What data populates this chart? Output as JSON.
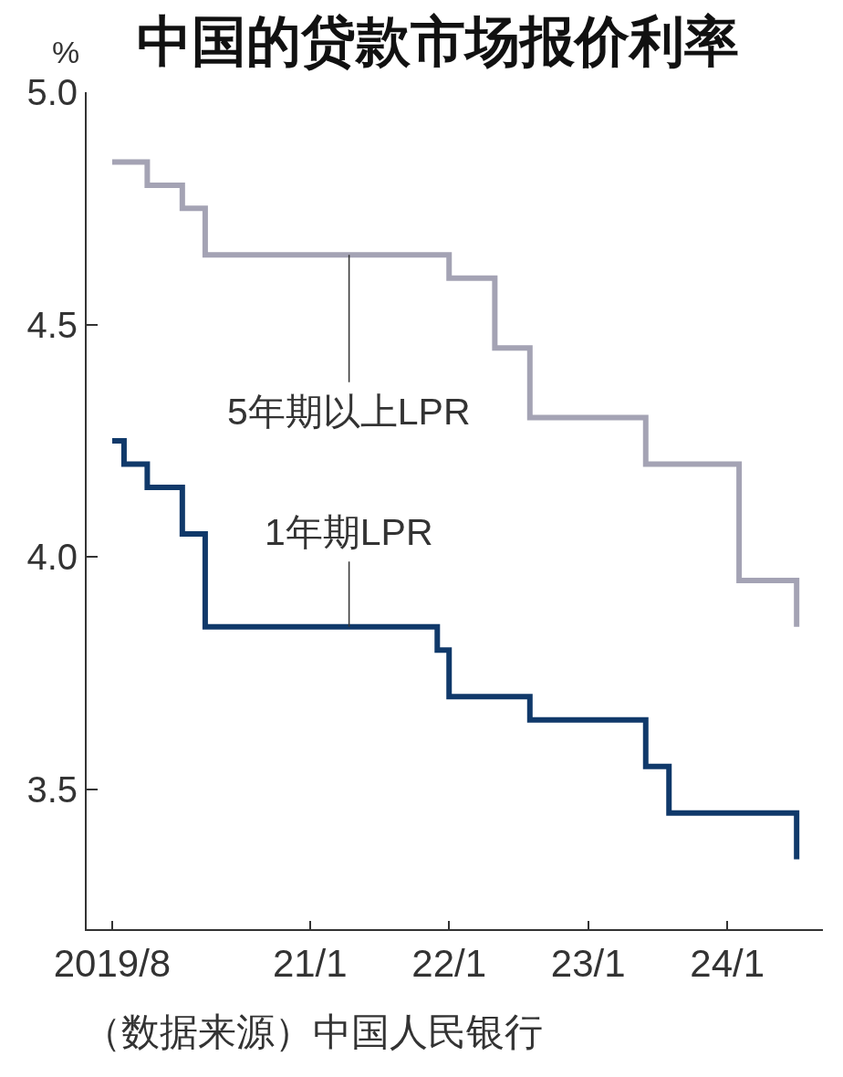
{
  "chart_data": {
    "type": "step",
    "title": "中国的贷款市场报价利率",
    "ylabel": "%",
    "annotations": [
      "（数据来源）中国人民银行"
    ],
    "xlim": [
      "2019-05-26",
      "2024-09-08"
    ],
    "xticks": [
      {
        "value": "2019-08",
        "label": "2019/8"
      },
      {
        "value": "2021-01",
        "label": "21/1"
      },
      {
        "value": "2022-01",
        "label": "22/1"
      },
      {
        "value": "2023-01",
        "label": "23/1"
      },
      {
        "value": "2024-01",
        "label": "24/1"
      }
    ],
    "ylim": [
      3.2,
      5.0
    ],
    "yticks": [
      3.5,
      {
        "value": 4.0,
        "label": "4.0"
      },
      4.5,
      {
        "value": 5.0,
        "label": "5.0"
      }
    ],
    "grid": false,
    "legend": false,
    "series": [
      {
        "name": "5年期以上LPR",
        "color": "#a4a3b4",
        "x": [
          "2019-08",
          "2019-11",
          "2020-02",
          "2020-04",
          "2022-01",
          "2022-05",
          "2022-08",
          "2023-06",
          "2024-02",
          "2024-07"
        ],
        "values": [
          4.85,
          4.8,
          4.75,
          4.65,
          4.6,
          4.45,
          4.3,
          4.2,
          3.95,
          3.85
        ]
      },
      {
        "name": "1年期LPR",
        "color": "#10396a",
        "x": [
          "2019-08",
          "2019-09",
          "2019-11",
          "2020-02",
          "2020-04",
          "2021-12",
          "2022-01",
          "2022-08",
          "2023-06",
          "2023-08",
          "2024-07"
        ],
        "values": [
          4.25,
          4.2,
          4.15,
          4.05,
          3.85,
          3.8,
          3.7,
          3.65,
          3.55,
          3.45,
          3.35
        ]
      }
    ]
  }
}
